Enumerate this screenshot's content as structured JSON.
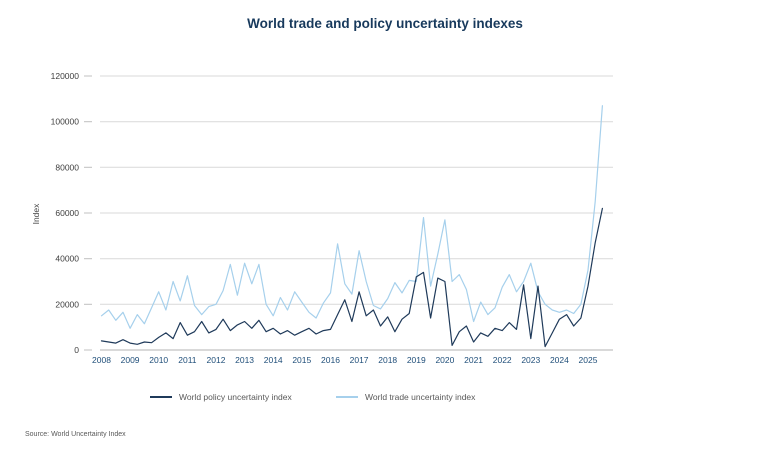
{
  "chart_data": {
    "type": "line",
    "title": "World trade and policy uncertainty indexes",
    "ylabel": "Index",
    "xlabel": "",
    "ylim": [
      0,
      120000
    ],
    "y_ticks": [
      0,
      20000,
      40000,
      60000,
      80000,
      100000,
      120000
    ],
    "x_tick_labels": [
      "2008",
      "2009",
      "2010",
      "2011",
      "2012",
      "2013",
      "2014",
      "2015",
      "2016",
      "2017",
      "2018",
      "2019",
      "2020",
      "2021",
      "2022",
      "2023",
      "2024",
      "2025"
    ],
    "frequency": "quarterly",
    "x_range": "2008Q1 to 2025Q3",
    "grid": true,
    "legend_position": "bottom",
    "colors": {
      "policy": "#1f3a5a",
      "trade": "#a6d0ec",
      "gridline": "#d9d9d9",
      "axis": "#b3b3b3",
      "tick": "#c0c0c0",
      "title": "#17395c",
      "x_label": "#1f4e79",
      "y_label": "#404040"
    },
    "series": [
      {
        "name": "World policy uncertainty index",
        "color": "#1f3a5a",
        "values": [
          4000,
          3500,
          3000,
          4500,
          3000,
          2500,
          3500,
          3200,
          5500,
          7500,
          5000,
          12000,
          6500,
          8000,
          12500,
          7500,
          9000,
          13500,
          8500,
          11000,
          12500,
          9500,
          13000,
          8000,
          9500,
          7000,
          8500,
          6500,
          8000,
          9500,
          7000,
          8500,
          9000,
          15500,
          22000,
          12500,
          25500,
          15000,
          17500,
          10500,
          14500,
          8000,
          13500,
          16000,
          32000,
          34000,
          14000,
          31500,
          30000,
          2000,
          8000,
          10500,
          3500,
          7500,
          6000,
          9500,
          8500,
          12000,
          9000,
          28500,
          5000,
          28000,
          1500,
          7500,
          13500,
          15500,
          10500,
          14000,
          28000,
          47000,
          62000
        ]
      },
      {
        "name": "World trade uncertainty index",
        "color": "#a6d0ec",
        "values": [
          15000,
          17500,
          13000,
          16500,
          9500,
          15500,
          11500,
          18500,
          25500,
          17500,
          30000,
          21500,
          32500,
          19500,
          15500,
          19000,
          20000,
          26000,
          37500,
          24000,
          38000,
          29000,
          37500,
          20000,
          15000,
          23000,
          17500,
          25500,
          21000,
          16500,
          14000,
          20500,
          25000,
          46500,
          29000,
          24500,
          43500,
          30000,
          19500,
          18000,
          22500,
          29500,
          25000,
          30500,
          30000,
          58000,
          28000,
          42000,
          57000,
          30000,
          33000,
          26500,
          12500,
          21000,
          15500,
          18500,
          27500,
          33000,
          25500,
          30000,
          38000,
          25500,
          20000,
          17500,
          16500,
          17500,
          16000,
          20000,
          35000,
          65000,
          107000
        ]
      }
    ]
  },
  "source": "Source: World Uncertainty Index"
}
